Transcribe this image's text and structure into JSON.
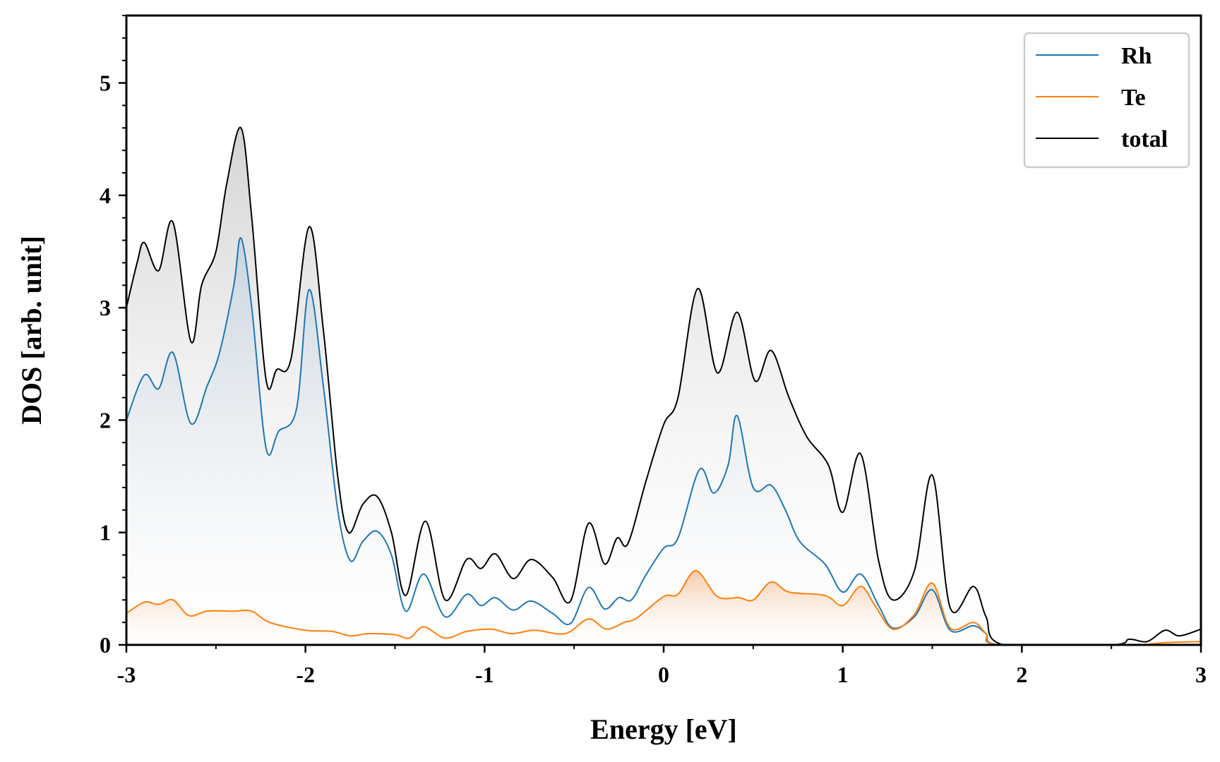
{
  "chart_data": {
    "type": "line",
    "xlabel": "Energy [eV]",
    "ylabel": "DOS [arb. unit]",
    "xlim": [
      -3,
      3
    ],
    "ylim": [
      0,
      5.6
    ],
    "xticks": [
      -3,
      -2,
      -1,
      0,
      1,
      2,
      3
    ],
    "xtick_labels": [
      "-3",
      "-2",
      "-1",
      "0",
      "1",
      "2",
      "3"
    ],
    "yticks": [
      0,
      1,
      2,
      3,
      4,
      5
    ],
    "ytick_labels": [
      "0",
      "1",
      "2",
      "3",
      "4",
      "5"
    ],
    "grid": false,
    "legend_position": "top-right",
    "fill_under_curves": true,
    "series": [
      {
        "name": "Rh",
        "color": "#1f77b4",
        "fill_color": "#c9d6e3",
        "points": [
          [
            -3.0,
            2.0
          ],
          [
            -2.9,
            2.4
          ],
          [
            -2.82,
            2.28
          ],
          [
            -2.74,
            2.6
          ],
          [
            -2.64,
            1.97
          ],
          [
            -2.55,
            2.3
          ],
          [
            -2.48,
            2.6
          ],
          [
            -2.4,
            3.2
          ],
          [
            -2.36,
            3.62
          ],
          [
            -2.3,
            3.0
          ],
          [
            -2.22,
            1.75
          ],
          [
            -2.15,
            1.9
          ],
          [
            -2.05,
            2.1
          ],
          [
            -1.98,
            3.16
          ],
          [
            -1.9,
            2.3
          ],
          [
            -1.82,
            1.2
          ],
          [
            -1.75,
            0.75
          ],
          [
            -1.68,
            0.92
          ],
          [
            -1.6,
            1.01
          ],
          [
            -1.52,
            0.8
          ],
          [
            -1.44,
            0.3
          ],
          [
            -1.34,
            0.63
          ],
          [
            -1.22,
            0.25
          ],
          [
            -1.1,
            0.45
          ],
          [
            -1.02,
            0.35
          ],
          [
            -0.94,
            0.42
          ],
          [
            -0.84,
            0.31
          ],
          [
            -0.74,
            0.39
          ],
          [
            -0.62,
            0.28
          ],
          [
            -0.52,
            0.19
          ],
          [
            -0.42,
            0.51
          ],
          [
            -0.33,
            0.32
          ],
          [
            -0.25,
            0.42
          ],
          [
            -0.18,
            0.4
          ],
          [
            -0.1,
            0.62
          ],
          [
            0.0,
            0.86
          ],
          [
            0.08,
            0.95
          ],
          [
            0.2,
            1.56
          ],
          [
            0.28,
            1.35
          ],
          [
            0.36,
            1.6
          ],
          [
            0.41,
            2.04
          ],
          [
            0.5,
            1.4
          ],
          [
            0.6,
            1.42
          ],
          [
            0.68,
            1.2
          ],
          [
            0.76,
            0.92
          ],
          [
            0.9,
            0.72
          ],
          [
            1.0,
            0.47
          ],
          [
            1.1,
            0.63
          ],
          [
            1.2,
            0.35
          ],
          [
            1.28,
            0.15
          ],
          [
            1.4,
            0.25
          ],
          [
            1.5,
            0.49
          ],
          [
            1.6,
            0.13
          ],
          [
            1.73,
            0.17
          ],
          [
            1.8,
            0.1
          ],
          [
            1.88,
            0.0
          ],
          [
            2.5,
            0.0
          ],
          [
            3.0,
            0.0
          ]
        ]
      },
      {
        "name": "Te",
        "color": "#ff7f0e",
        "fill_color": "#f7c9a6",
        "points": [
          [
            -3.0,
            0.28
          ],
          [
            -2.9,
            0.38
          ],
          [
            -2.82,
            0.36
          ],
          [
            -2.74,
            0.4
          ],
          [
            -2.65,
            0.26
          ],
          [
            -2.55,
            0.3
          ],
          [
            -2.4,
            0.3
          ],
          [
            -2.3,
            0.3
          ],
          [
            -2.2,
            0.2
          ],
          [
            -2.0,
            0.13
          ],
          [
            -1.85,
            0.12
          ],
          [
            -1.75,
            0.08
          ],
          [
            -1.65,
            0.1
          ],
          [
            -1.5,
            0.09
          ],
          [
            -1.42,
            0.06
          ],
          [
            -1.34,
            0.16
          ],
          [
            -1.22,
            0.06
          ],
          [
            -1.1,
            0.12
          ],
          [
            -0.96,
            0.14
          ],
          [
            -0.85,
            0.1
          ],
          [
            -0.72,
            0.13
          ],
          [
            -0.55,
            0.1
          ],
          [
            -0.42,
            0.23
          ],
          [
            -0.32,
            0.14
          ],
          [
            -0.22,
            0.2
          ],
          [
            -0.15,
            0.24
          ],
          [
            0.0,
            0.43
          ],
          [
            0.08,
            0.45
          ],
          [
            0.18,
            0.66
          ],
          [
            0.3,
            0.43
          ],
          [
            0.42,
            0.42
          ],
          [
            0.5,
            0.4
          ],
          [
            0.6,
            0.56
          ],
          [
            0.7,
            0.47
          ],
          [
            0.9,
            0.44
          ],
          [
            1.0,
            0.35
          ],
          [
            1.1,
            0.52
          ],
          [
            1.18,
            0.35
          ],
          [
            1.28,
            0.14
          ],
          [
            1.4,
            0.27
          ],
          [
            1.5,
            0.55
          ],
          [
            1.6,
            0.15
          ],
          [
            1.73,
            0.2
          ],
          [
            1.8,
            0.1
          ],
          [
            1.88,
            0.0
          ],
          [
            2.6,
            0.0
          ],
          [
            2.8,
            0.02
          ],
          [
            3.0,
            0.03
          ]
        ]
      },
      {
        "name": "total",
        "color": "#000000",
        "fill_color": "#d4d4d4",
        "points": [
          [
            -3.0,
            3.0
          ],
          [
            -2.94,
            3.4
          ],
          [
            -2.9,
            3.58
          ],
          [
            -2.82,
            3.33
          ],
          [
            -2.74,
            3.76
          ],
          [
            -2.64,
            2.7
          ],
          [
            -2.58,
            3.2
          ],
          [
            -2.5,
            3.5
          ],
          [
            -2.44,
            4.1
          ],
          [
            -2.36,
            4.6
          ],
          [
            -2.3,
            3.8
          ],
          [
            -2.22,
            2.36
          ],
          [
            -2.16,
            2.45
          ],
          [
            -2.08,
            2.55
          ],
          [
            -1.98,
            3.72
          ],
          [
            -1.9,
            2.8
          ],
          [
            -1.82,
            1.5
          ],
          [
            -1.76,
            1.0
          ],
          [
            -1.68,
            1.25
          ],
          [
            -1.6,
            1.32
          ],
          [
            -1.52,
            1.0
          ],
          [
            -1.44,
            0.44
          ],
          [
            -1.33,
            1.1
          ],
          [
            -1.22,
            0.4
          ],
          [
            -1.1,
            0.76
          ],
          [
            -1.02,
            0.68
          ],
          [
            -0.94,
            0.81
          ],
          [
            -0.84,
            0.59
          ],
          [
            -0.74,
            0.76
          ],
          [
            -0.62,
            0.6
          ],
          [
            -0.52,
            0.39
          ],
          [
            -0.42,
            1.08
          ],
          [
            -0.33,
            0.72
          ],
          [
            -0.26,
            0.95
          ],
          [
            -0.2,
            0.9
          ],
          [
            -0.1,
            1.45
          ],
          [
            0.0,
            1.96
          ],
          [
            0.08,
            2.2
          ],
          [
            0.19,
            3.17
          ],
          [
            0.3,
            2.42
          ],
          [
            0.41,
            2.96
          ],
          [
            0.51,
            2.35
          ],
          [
            0.6,
            2.62
          ],
          [
            0.7,
            2.2
          ],
          [
            0.8,
            1.85
          ],
          [
            0.92,
            1.6
          ],
          [
            1.0,
            1.18
          ],
          [
            1.1,
            1.7
          ],
          [
            1.2,
            0.75
          ],
          [
            1.28,
            0.4
          ],
          [
            1.4,
            0.66
          ],
          [
            1.5,
            1.51
          ],
          [
            1.6,
            0.33
          ],
          [
            1.73,
            0.52
          ],
          [
            1.8,
            0.25
          ],
          [
            1.9,
            0.0
          ],
          [
            2.5,
            0.0
          ],
          [
            2.6,
            0.05
          ],
          [
            2.7,
            0.03
          ],
          [
            2.8,
            0.13
          ],
          [
            2.88,
            0.08
          ],
          [
            3.0,
            0.14
          ]
        ]
      }
    ]
  }
}
